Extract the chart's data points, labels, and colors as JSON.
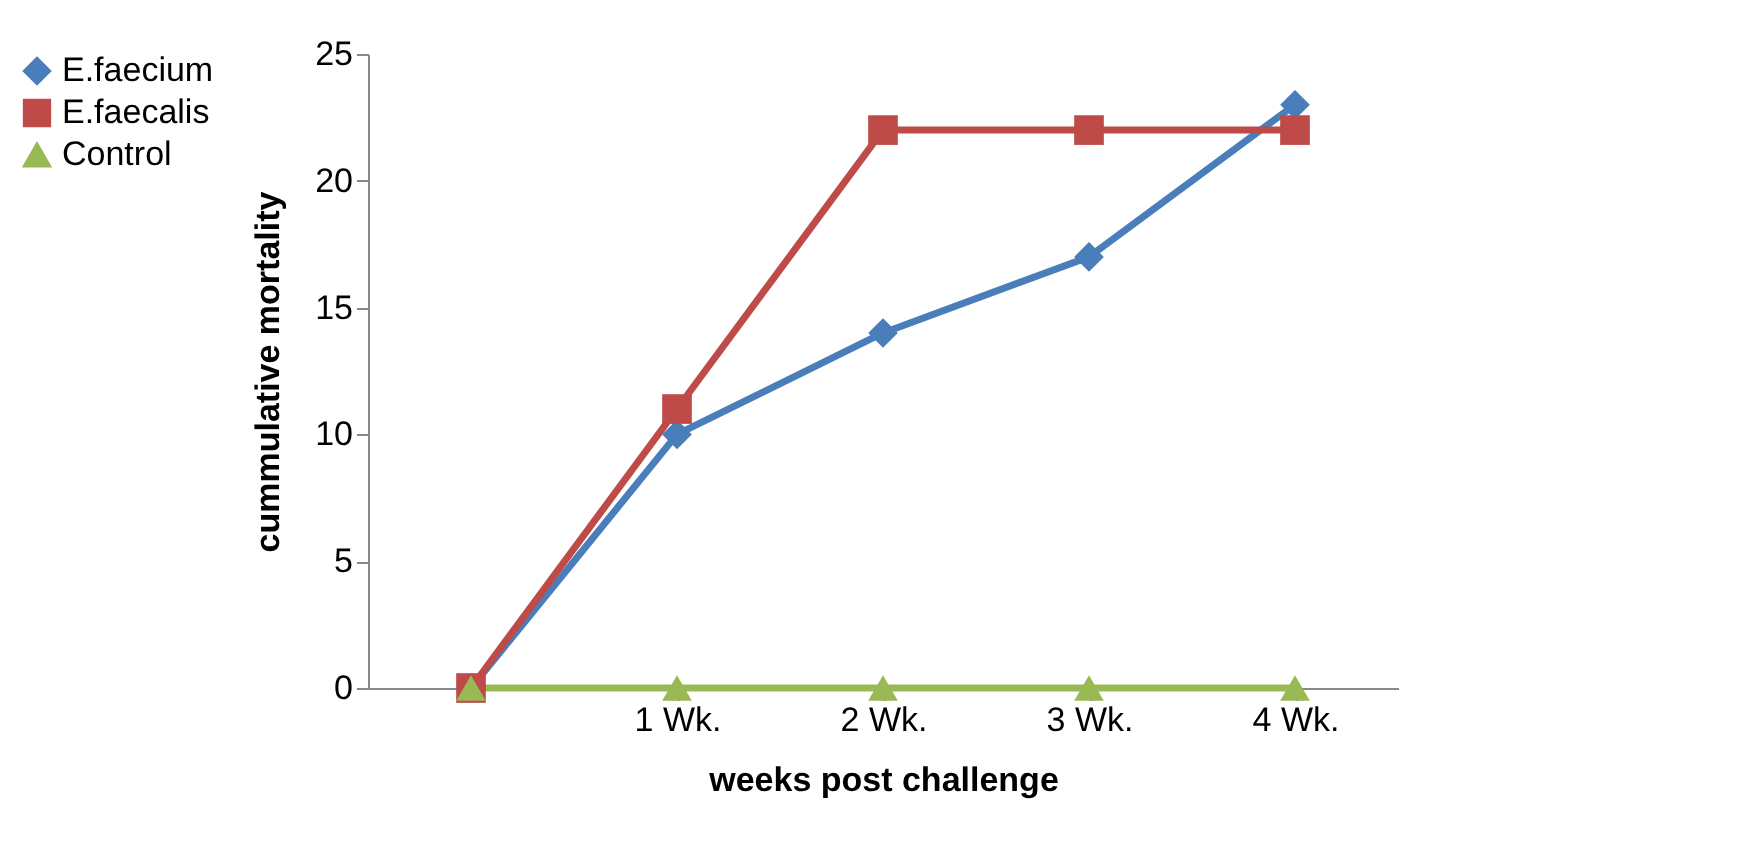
{
  "chart_data": {
    "type": "line",
    "xlabel": "weeks post challenge",
    "ylabel": "cummulative mortality",
    "categories": [
      null,
      "1 Wk.",
      "2 Wk.",
      "3 Wk.",
      "4 Wk."
    ],
    "series": [
      {
        "name": "E.faecium",
        "color": "#4a7ebb",
        "marker": "diamond",
        "values": [
          0,
          10,
          14,
          17,
          23
        ]
      },
      {
        "name": "E.faecalis",
        "color": "#be4b48",
        "marker": "square",
        "values": [
          0,
          11,
          22,
          22,
          22
        ]
      },
      {
        "name": "Control",
        "color": "#98b954",
        "marker": "triangle",
        "values": [
          0,
          0,
          0,
          0,
          0
        ]
      }
    ],
    "ylim": [
      0,
      25
    ],
    "yticks": [
      0,
      5,
      10,
      15,
      20,
      25
    ],
    "legend": "left",
    "line_style": "solid"
  }
}
